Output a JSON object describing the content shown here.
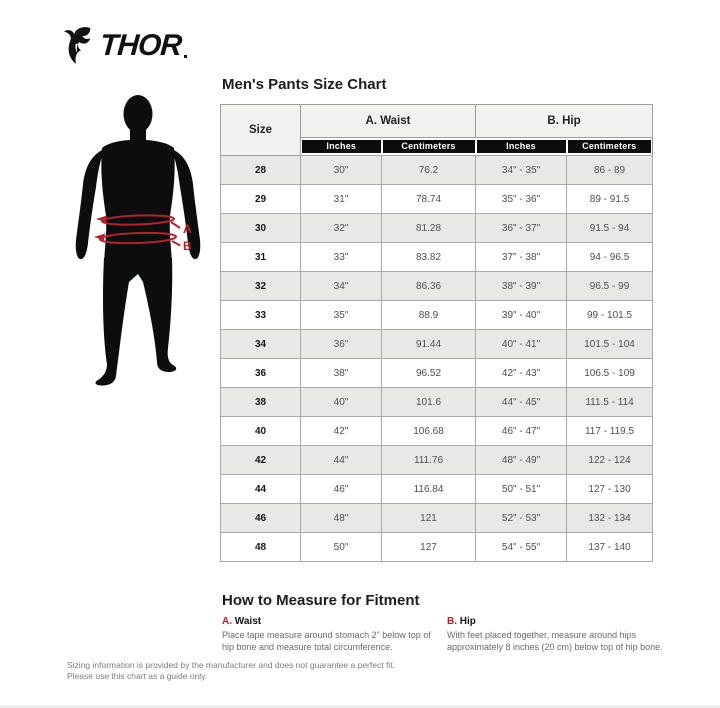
{
  "brand": {
    "name": "THOR"
  },
  "figure": {
    "label_a": "A",
    "label_b": "B"
  },
  "chart_data": {
    "type": "table",
    "title": "Men's Pants Size Chart",
    "column_groups": [
      {
        "label": "Size"
      },
      {
        "label": "A. Waist",
        "sub": [
          "Inches",
          "Centimeters"
        ]
      },
      {
        "label": "B. Hip",
        "sub": [
          "Inches",
          "Centimeters"
        ]
      }
    ],
    "rows": [
      [
        "28",
        "30\"",
        "76.2",
        "34\" - 35\"",
        "86 - 89"
      ],
      [
        "29",
        "31\"",
        "78.74",
        "35\" - 36\"",
        "89 - 91.5"
      ],
      [
        "30",
        "32\"",
        "81.28",
        "36\" - 37\"",
        "91.5 - 94"
      ],
      [
        "31",
        "33\"",
        "83.82",
        "37\" - 38\"",
        "94 - 96.5"
      ],
      [
        "32",
        "34\"",
        "86.36",
        "38\" - 39\"",
        "96.5 - 99"
      ],
      [
        "33",
        "35\"",
        "88.9",
        "39\" - 40\"",
        "99 - 101.5"
      ],
      [
        "34",
        "36\"",
        "91.44",
        "40\" - 41\"",
        "101.5 - 104"
      ],
      [
        "36",
        "38\"",
        "96.52",
        "42\" - 43\"",
        "106.5 - 109"
      ],
      [
        "38",
        "40\"",
        "101.6",
        "44\" - 45\"",
        "111.5 - 114"
      ],
      [
        "40",
        "42\"",
        "106.68",
        "46\" - 47\"",
        "117 - 119.5"
      ],
      [
        "42",
        "44\"",
        "111.76",
        "48\" - 49\"",
        "122 - 124"
      ],
      [
        "44",
        "46\"",
        "116.84",
        "50\" - 51\"",
        "127 - 130"
      ],
      [
        "46",
        "48\"",
        "121",
        "52\" - 53\"",
        "132 - 134"
      ],
      [
        "48",
        "50\"",
        "127",
        "54\" - 55\"",
        "137 - 140"
      ]
    ]
  },
  "measure": {
    "heading": "How to Measure for Fitment",
    "items": [
      {
        "key": "A.",
        "label": "Waist",
        "text": "Place tape measure around stomach 2\" below top of hip bone and measure total circumference."
      },
      {
        "key": "B.",
        "label": "Hip",
        "text": "With feet placed together, measure around hips approximately 8 inches (20 cm) below top of hip bone."
      }
    ]
  },
  "disclaimer": "Sizing information is provided by the manufacturer and does not guarantee a perfect fit.\nPlease use this chart as a guide only.",
  "colors": {
    "accent_red": "#b4232b",
    "header_bar_bg": "#0c0c0c",
    "row_alt_bg": "#e9e8e7",
    "silhouette": "#0c0d0e"
  }
}
